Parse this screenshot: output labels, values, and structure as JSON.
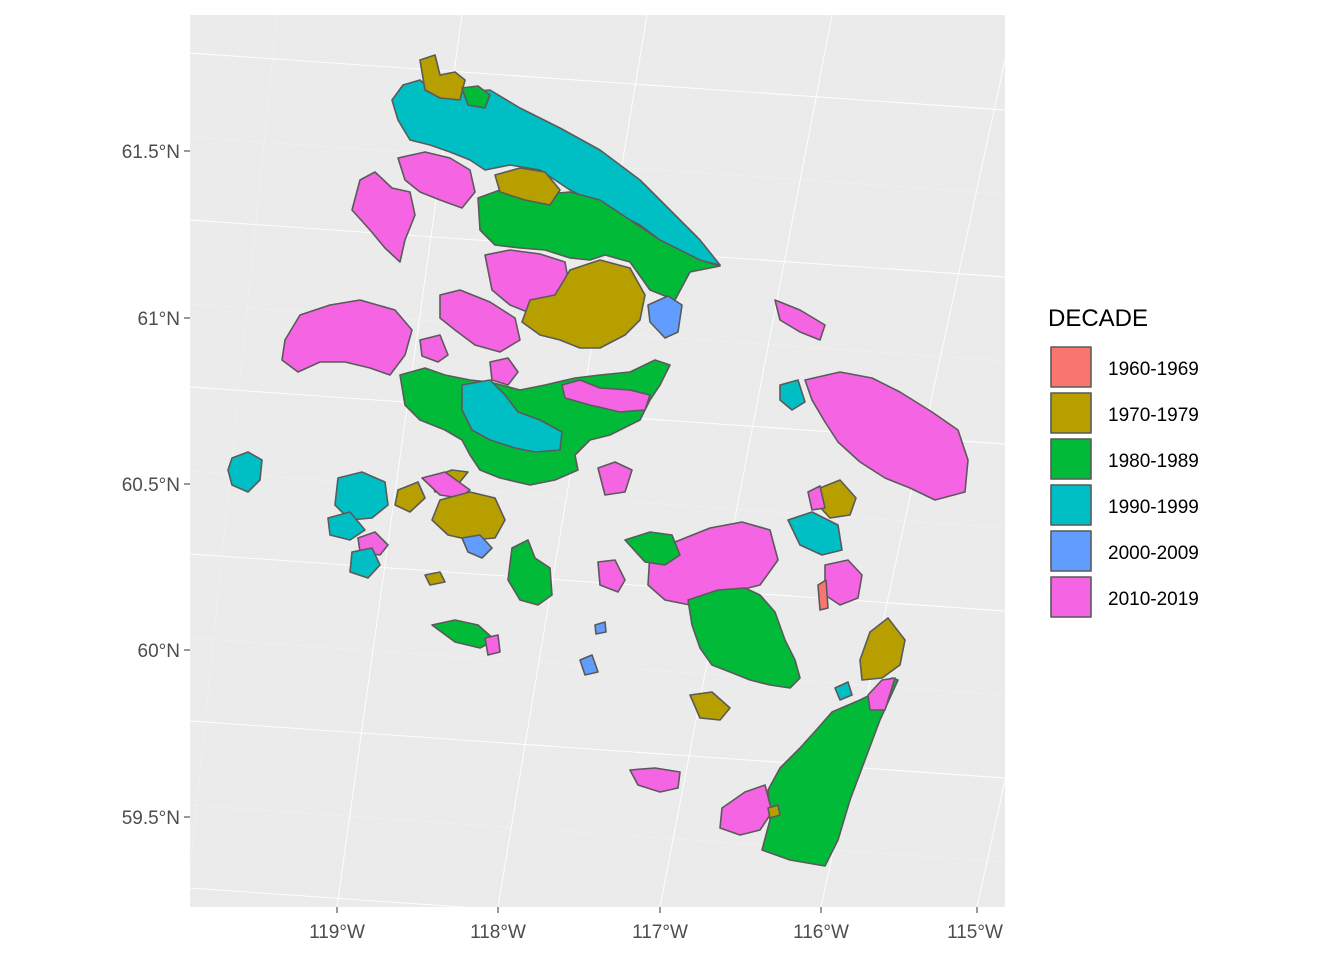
{
  "legend": {
    "title": "DECADE",
    "entries": [
      {
        "label": "1960-1969",
        "color": "#F8766D"
      },
      {
        "label": "1970-1979",
        "color": "#B79F00"
      },
      {
        "label": "1980-1989",
        "color": "#00BA38"
      },
      {
        "label": "1990-1999",
        "color": "#00BFC4"
      },
      {
        "label": "2000-2009",
        "color": "#619CFF"
      },
      {
        "label": "2010-2019",
        "color": "#F564E3"
      }
    ]
  },
  "axes": {
    "y_ticks": [
      "61.5°N",
      "61°N",
      "60.5°N",
      "60°N",
      "59.5°N"
    ],
    "x_ticks": [
      "119°W",
      "118°W",
      "117°W",
      "116°W",
      "115°W"
    ]
  },
  "colors": {
    "panel_background": "#EBEBEB",
    "grid": "#FFFFFF",
    "outline": "#5A5A5A"
  }
}
